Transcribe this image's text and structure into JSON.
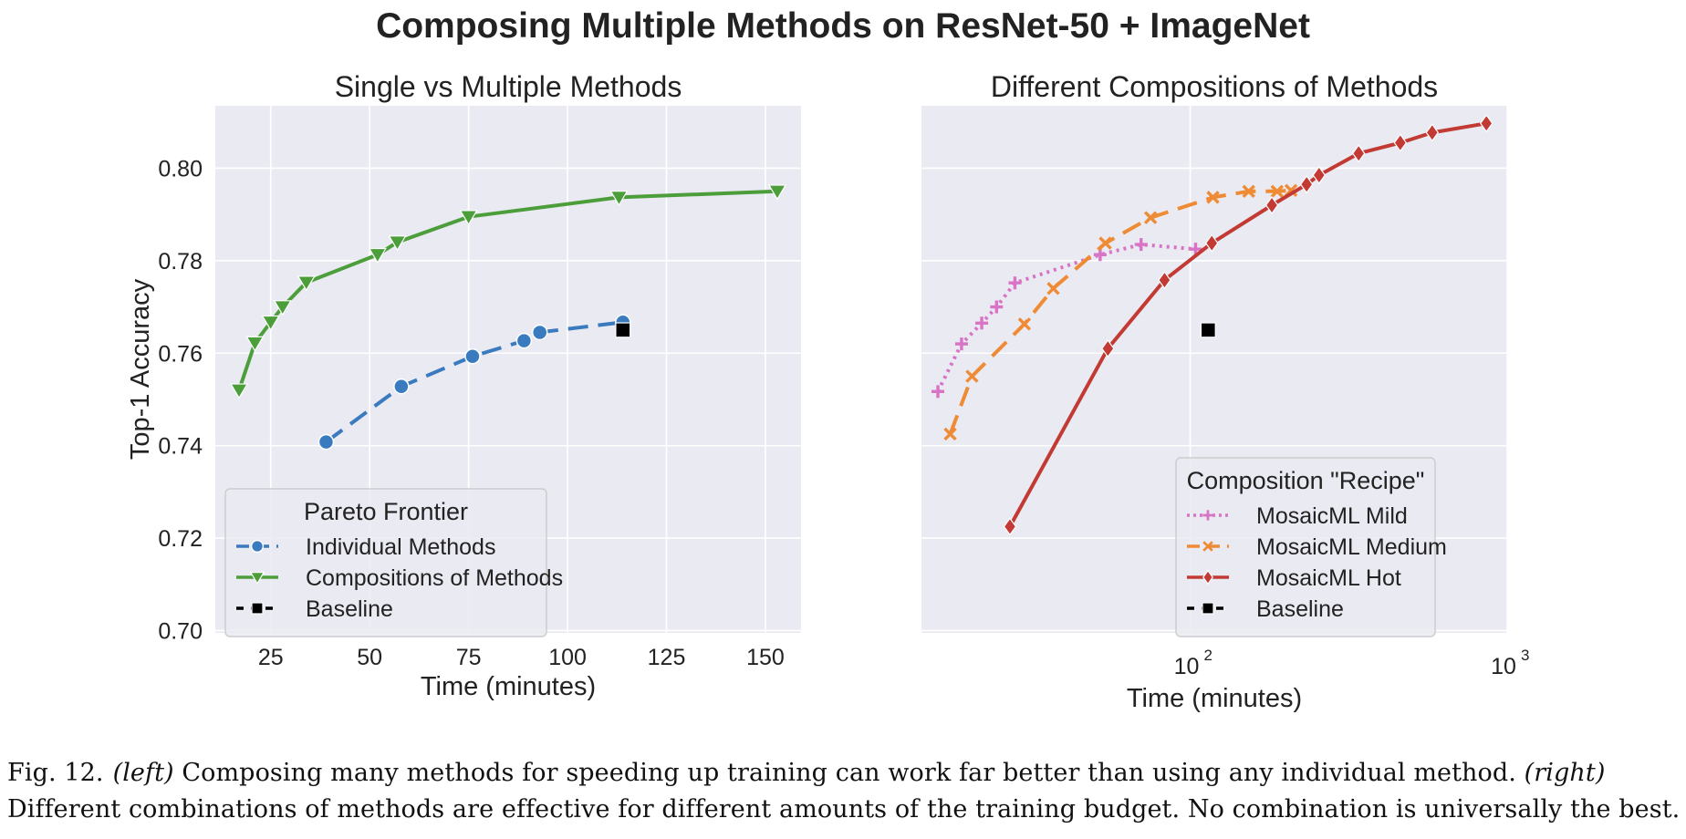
{
  "figure": {
    "suptitle": "Composing Multiple Methods on ResNet-50 + ImageNet",
    "colors": {
      "background": "#eaeaf2",
      "grid": "#ffffff",
      "individual": "#3a7bbf",
      "compositions": "#4c9e3a",
      "mild": "#d873c6",
      "medium": "#ee8b34",
      "hot": "#c23a33",
      "baseline": "#000000"
    }
  },
  "chart_data": [
    {
      "type": "line",
      "title": "Single vs Multiple Methods",
      "xlabel": "Time (minutes)",
      "ylabel": "Top-1 Accuracy",
      "xscale": "linear",
      "xlim": [
        11,
        159
      ],
      "ylim": [
        0.6995,
        0.8135
      ],
      "xticks": [
        25,
        50,
        75,
        100,
        125,
        150
      ],
      "xtick_labels": [
        "25",
        "50",
        "75",
        "100",
        "125",
        "150"
      ],
      "yticks": [
        0.7,
        0.72,
        0.74,
        0.76,
        0.78,
        0.8
      ],
      "ytick_labels": [
        "0.70",
        "0.72",
        "0.74",
        "0.76",
        "0.78",
        "0.80"
      ],
      "grid": true,
      "legend": {
        "title": "Pareto Frontier",
        "placement": "lower-left",
        "entries": [
          "Individual Methods",
          "Compositions of Methods",
          "Baseline"
        ]
      },
      "series": [
        {
          "name": "Individual Methods",
          "marker": "circle",
          "linestyle": "dashed",
          "color_key": "individual",
          "x": [
            39,
            58,
            76,
            89,
            93,
            114
          ],
          "y": [
            0.7408,
            0.7528,
            0.7593,
            0.7627,
            0.7645,
            0.7667
          ]
        },
        {
          "name": "Compositions of Methods",
          "marker": "triangle-down",
          "linestyle": "solid",
          "color_key": "compositions",
          "x": [
            17,
            21,
            25,
            28,
            34,
            52,
            57,
            75,
            113,
            153
          ],
          "y": [
            0.752,
            0.7622,
            0.7667,
            0.77,
            0.7753,
            0.7813,
            0.784,
            0.7895,
            0.7937,
            0.795
          ]
        },
        {
          "name": "Baseline",
          "marker": "square",
          "linestyle": "none",
          "color_key": "baseline",
          "x": [
            114
          ],
          "y": [
            0.765
          ]
        }
      ]
    },
    {
      "type": "line",
      "title": "Different Compositions of Methods",
      "xlabel": "Time (minutes)",
      "ylabel": "",
      "xscale": "log",
      "xlim": [
        14.2,
        1000
      ],
      "ylim": [
        0.6995,
        0.8135
      ],
      "xticks": [
        100,
        1000
      ],
      "xtick_labels": [
        {
          "base": "10",
          "exp": "2"
        },
        {
          "base": "10",
          "exp": "3"
        }
      ],
      "yticks": [
        0.7,
        0.72,
        0.74,
        0.76,
        0.78,
        0.8
      ],
      "grid": true,
      "legend": {
        "title": "Composition \"Recipe\"",
        "placement": "lower-right",
        "entries": [
          "MosaicML Mild",
          "MosaicML Medium",
          "MosaicML Hot",
          "Baseline"
        ]
      },
      "series": [
        {
          "name": "MosaicML Mild",
          "marker": "plus",
          "linestyle": "dotted",
          "color_key": "mild",
          "x": [
            16,
            19,
            22,
            24.5,
            28,
            52,
            70,
            104
          ],
          "y": [
            0.7517,
            0.762,
            0.7665,
            0.77,
            0.7752,
            0.7813,
            0.7835,
            0.7825
          ]
        },
        {
          "name": "MosaicML Medium",
          "marker": "x",
          "linestyle": "dashed",
          "color_key": "medium",
          "x": [
            17.5,
            20.5,
            30,
            37,
            54,
            75,
            118,
            153,
            188,
            208
          ],
          "y": [
            0.7425,
            0.755,
            0.7663,
            0.774,
            0.7838,
            0.7893,
            0.7937,
            0.795,
            0.795,
            0.7952
          ]
        },
        {
          "name": "MosaicML Hot",
          "marker": "diamond",
          "linestyle": "solid",
          "color_key": "hot",
          "x": [
            27,
            55,
            83,
            117,
            181,
            233,
            255,
            340,
            460,
            580,
            860
          ],
          "y": [
            0.7225,
            0.761,
            0.7758,
            0.7838,
            0.792,
            0.7965,
            0.7985,
            0.8032,
            0.8055,
            0.8077,
            0.8097
          ]
        },
        {
          "name": "Baseline",
          "marker": "square",
          "linestyle": "none",
          "color_key": "baseline",
          "x": [
            114
          ],
          "y": [
            0.765
          ]
        }
      ]
    }
  ],
  "caption": {
    "label": "Fig. 12.",
    "left_tag": "(left)",
    "left_text": " Composing many methods for speeding up training can work far better than using any individual method. ",
    "right_tag": "(right)",
    "right_text": " Different combinations of methods are effective for different amounts of the training budget. No combination is universally the best."
  }
}
